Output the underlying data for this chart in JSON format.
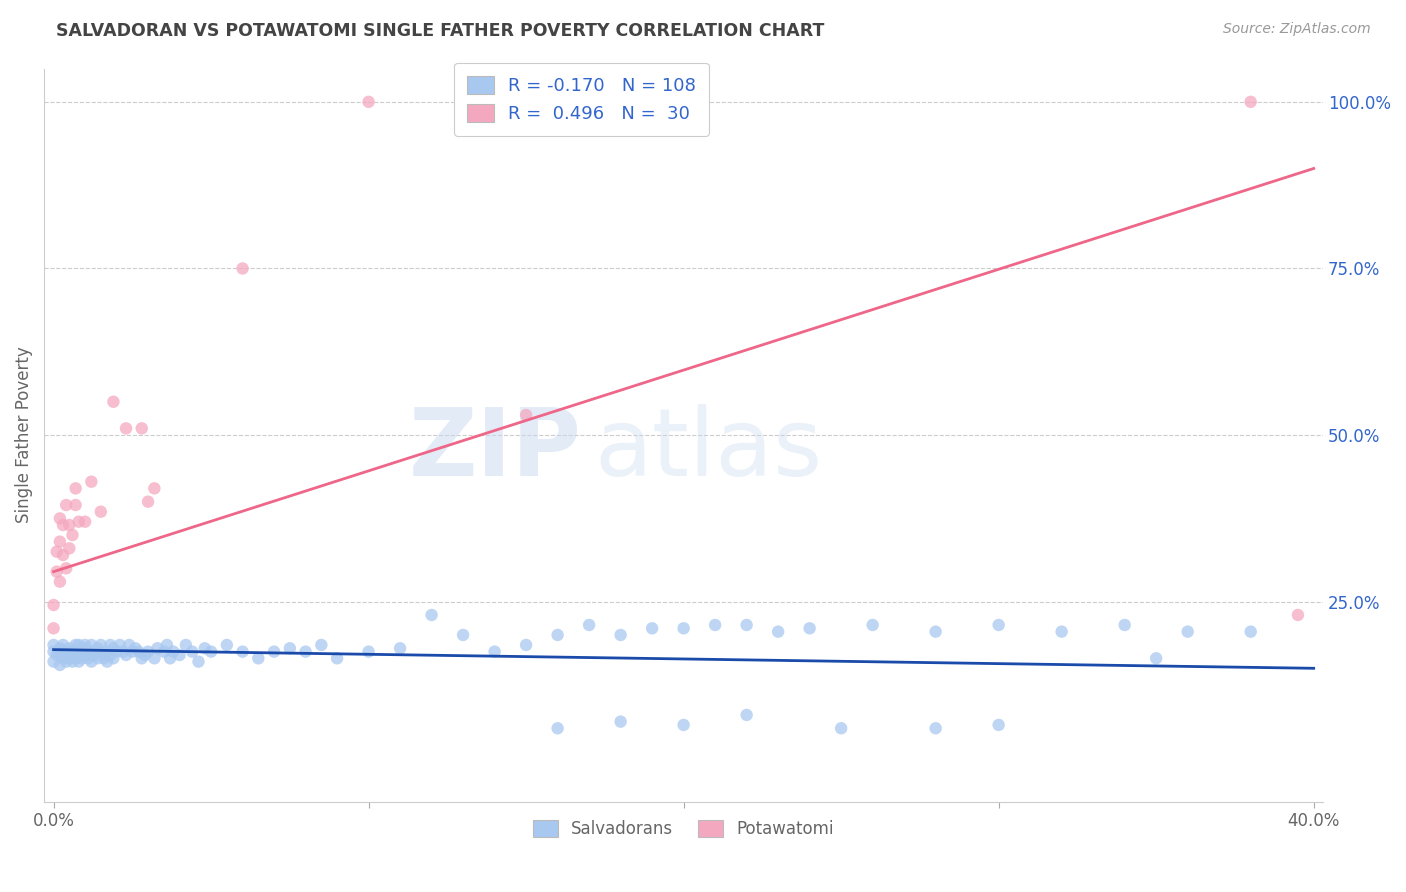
{
  "title": "SALVADORAN VS POTAWATOMI SINGLE FATHER POVERTY CORRELATION CHART",
  "source": "Source: ZipAtlas.com",
  "ylabel": "Single Father Poverty",
  "right_yticks": [
    "100.0%",
    "75.0%",
    "50.0%",
    "25.0%"
  ],
  "right_ytick_vals": [
    1.0,
    0.75,
    0.5,
    0.25
  ],
  "xlim": [
    -0.003,
    0.403
  ],
  "ylim": [
    -0.05,
    1.05
  ],
  "watermark_zip": "ZIP",
  "watermark_atlas": "atlas",
  "legend_blue_R": "-0.170",
  "legend_blue_N": "108",
  "legend_pink_R": "0.496",
  "legend_pink_N": "30",
  "blue_color": "#A8C8F0",
  "pink_color": "#F4A8C0",
  "blue_line_color": "#1A4AAA",
  "pink_line_color": "#EE6688",
  "title_color": "#444444",
  "source_color": "#999999",
  "legend_val_color": "#3366CC",
  "grid_color": "#CCCCCC",
  "blue_scatter_x": [
    0.0,
    0.0,
    0.0,
    0.001,
    0.002,
    0.002,
    0.002,
    0.003,
    0.003,
    0.003,
    0.004,
    0.004,
    0.005,
    0.005,
    0.005,
    0.006,
    0.006,
    0.007,
    0.007,
    0.007,
    0.008,
    0.008,
    0.008,
    0.009,
    0.009,
    0.01,
    0.01,
    0.01,
    0.011,
    0.011,
    0.012,
    0.012,
    0.012,
    0.013,
    0.013,
    0.014,
    0.014,
    0.015,
    0.015,
    0.016,
    0.016,
    0.017,
    0.017,
    0.018,
    0.018,
    0.019,
    0.019,
    0.02,
    0.021,
    0.022,
    0.023,
    0.024,
    0.025,
    0.026,
    0.027,
    0.028,
    0.029,
    0.03,
    0.032,
    0.033,
    0.035,
    0.036,
    0.037,
    0.038,
    0.04,
    0.042,
    0.044,
    0.046,
    0.048,
    0.05,
    0.055,
    0.06,
    0.065,
    0.07,
    0.075,
    0.08,
    0.085,
    0.09,
    0.1,
    0.11,
    0.12,
    0.13,
    0.14,
    0.15,
    0.16,
    0.17,
    0.18,
    0.19,
    0.2,
    0.21,
    0.22,
    0.23,
    0.24,
    0.26,
    0.28,
    0.3,
    0.32,
    0.34,
    0.36,
    0.38,
    0.16,
    0.18,
    0.2,
    0.22,
    0.25,
    0.28,
    0.3,
    0.35
  ],
  "blue_scatter_y": [
    0.175,
    0.16,
    0.185,
    0.17,
    0.155,
    0.175,
    0.18,
    0.165,
    0.175,
    0.185,
    0.17,
    0.16,
    0.175,
    0.165,
    0.18,
    0.17,
    0.16,
    0.175,
    0.185,
    0.165,
    0.175,
    0.16,
    0.185,
    0.17,
    0.165,
    0.18,
    0.175,
    0.185,
    0.17,
    0.165,
    0.175,
    0.16,
    0.185,
    0.17,
    0.175,
    0.165,
    0.18,
    0.175,
    0.185,
    0.17,
    0.165,
    0.175,
    0.16,
    0.185,
    0.17,
    0.165,
    0.18,
    0.175,
    0.185,
    0.175,
    0.17,
    0.185,
    0.175,
    0.18,
    0.175,
    0.165,
    0.17,
    0.175,
    0.165,
    0.18,
    0.175,
    0.185,
    0.165,
    0.175,
    0.17,
    0.185,
    0.175,
    0.16,
    0.18,
    0.175,
    0.185,
    0.175,
    0.165,
    0.175,
    0.18,
    0.175,
    0.185,
    0.165,
    0.175,
    0.18,
    0.23,
    0.2,
    0.175,
    0.185,
    0.2,
    0.215,
    0.2,
    0.21,
    0.21,
    0.215,
    0.215,
    0.205,
    0.21,
    0.215,
    0.205,
    0.215,
    0.205,
    0.215,
    0.205,
    0.205,
    0.06,
    0.07,
    0.065,
    0.08,
    0.06,
    0.06,
    0.065,
    0.165
  ],
  "pink_scatter_x": [
    0.0,
    0.0,
    0.001,
    0.001,
    0.002,
    0.002,
    0.002,
    0.003,
    0.003,
    0.004,
    0.004,
    0.005,
    0.005,
    0.006,
    0.007,
    0.007,
    0.008,
    0.01,
    0.012,
    0.015,
    0.019,
    0.023,
    0.028,
    0.03,
    0.032,
    0.06,
    0.1,
    0.15,
    0.38,
    0.395
  ],
  "pink_scatter_y": [
    0.21,
    0.245,
    0.295,
    0.325,
    0.28,
    0.34,
    0.375,
    0.32,
    0.365,
    0.3,
    0.395,
    0.365,
    0.33,
    0.35,
    0.395,
    0.42,
    0.37,
    0.37,
    0.43,
    0.385,
    0.55,
    0.51,
    0.51,
    0.4,
    0.42,
    0.75,
    1.0,
    0.53,
    1.0,
    0.23
  ],
  "blue_trend_x": [
    0.0,
    0.4
  ],
  "blue_trend_y": [
    0.178,
    0.15
  ],
  "pink_trend_x": [
    0.0,
    0.4
  ],
  "pink_trend_y": [
    0.295,
    0.9
  ]
}
